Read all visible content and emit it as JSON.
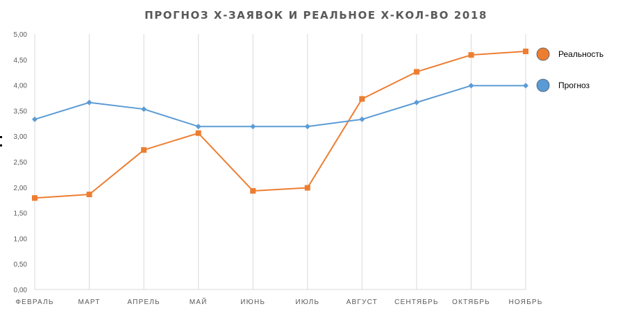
{
  "chart_data": {
    "type": "line",
    "title": "ПРОГНОЗ Х-ЗАЯВОК И РЕАЛЬНОЕ Х-КОЛ-ВО 2018",
    "xlabel": "",
    "ylabel": "",
    "categories": [
      "ФЕВРАЛЬ",
      "МАРТ",
      "АПРЕЛЬ",
      "МАЙ",
      "ИЮНЬ",
      "ИЮЛЬ",
      "АВГУСТ",
      "СЕНТЯБРЬ",
      "ОКТЯБРЬ",
      "НОЯБРЬ"
    ],
    "yticks": [
      "0,00",
      "0,50",
      "1,00",
      "1,50",
      "2,00",
      "2,50",
      "3,00",
      "3,50",
      "4,00",
      "4,50",
      "5,00"
    ],
    "ylim": [
      0,
      5
    ],
    "grid": "vertical",
    "legend_position": "right",
    "series": [
      {
        "name": "Реальность",
        "color": "#ed7d31",
        "marker": "square",
        "values": [
          1.79,
          1.86,
          2.73,
          3.06,
          1.93,
          1.99,
          3.73,
          4.26,
          4.59,
          4.66
        ]
      },
      {
        "name": "Прогноз",
        "color": "#5b9bd5",
        "marker": "diamond",
        "values": [
          3.33,
          3.66,
          3.53,
          3.19,
          3.19,
          3.19,
          3.33,
          3.66,
          3.99,
          3.99
        ]
      }
    ]
  }
}
